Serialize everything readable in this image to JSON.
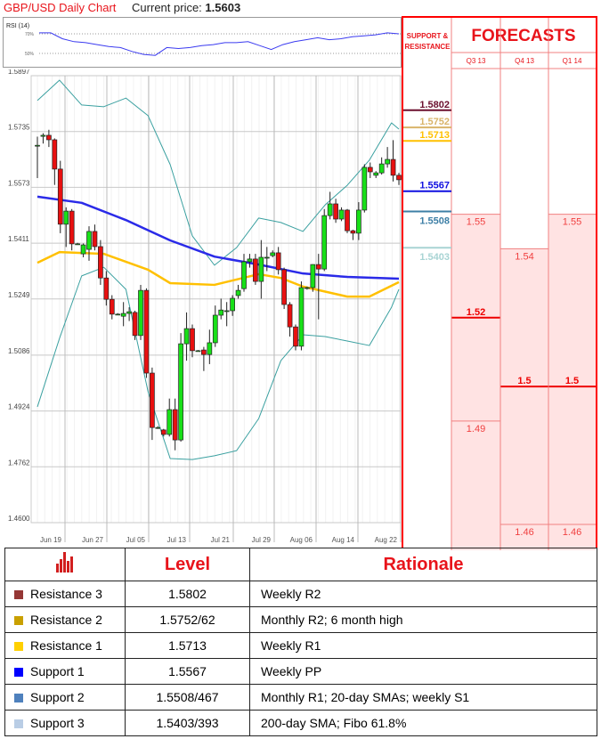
{
  "header": {
    "title": "GBP/USD Daily Chart",
    "current_price_label": "Current price:",
    "current_price": "1.5603"
  },
  "chart_data": [
    {
      "type": "line",
      "title": "RSI (14)",
      "ylim": [
        40,
        80
      ],
      "yticks": [
        "70%",
        "50%"
      ],
      "values": [
        71,
        71,
        65,
        62,
        61,
        59,
        57,
        56,
        52,
        49,
        48,
        56,
        55,
        56,
        58,
        59,
        61,
        61,
        62,
        58,
        54,
        59,
        62,
        64,
        66,
        64,
        65,
        67,
        68,
        69,
        71,
        70
      ],
      "color": "#3b3bf0"
    },
    {
      "type": "candlestick",
      "ylim": [
        1.46,
        1.5897
      ],
      "yticks": [
        "1.5897",
        "1.5735",
        "1.5573",
        "1.5411",
        "1.5249",
        "1.5086",
        "1.4924",
        "1.4762",
        "1.4600"
      ],
      "xticks": [
        "Jun 19",
        "Jun 27",
        "Jul 05",
        "Jul 13",
        "Jul 21",
        "Jul 29",
        "Aug 06",
        "Aug 14",
        "Aug 22"
      ],
      "ohlc": [
        [
          1.5695,
          1.572,
          1.56,
          1.5695
        ],
        [
          1.5721,
          1.573,
          1.57,
          1.5724
        ],
        [
          1.5724,
          1.574,
          1.569,
          1.5711
        ],
        [
          1.5711,
          1.5715,
          1.558,
          1.5626
        ],
        [
          1.5626,
          1.565,
          1.544,
          1.5466
        ],
        [
          1.5466,
          1.5515,
          1.54,
          1.5504
        ],
        [
          1.5504,
          1.551,
          1.539,
          1.5409
        ],
        [
          1.5409,
          1.5412,
          1.5406,
          1.5409
        ],
        [
          1.538,
          1.541,
          1.537,
          1.5406
        ],
        [
          1.5393,
          1.546,
          1.536,
          1.5445
        ],
        [
          1.5445,
          1.5465,
          1.539,
          1.5401
        ],
        [
          1.5401,
          1.542,
          1.529,
          1.531
        ],
        [
          1.531,
          1.533,
          1.523,
          1.5248
        ],
        [
          1.5248,
          1.526,
          1.519,
          1.5205
        ],
        [
          1.5205,
          1.5208,
          1.5202,
          1.5205
        ],
        [
          1.5199,
          1.524,
          1.517,
          1.5207
        ],
        [
          1.5207,
          1.5225,
          1.5185,
          1.5212
        ],
        [
          1.521,
          1.5215,
          1.513,
          1.5143
        ],
        [
          1.5143,
          1.529,
          1.513,
          1.5274
        ],
        [
          1.5274,
          1.528,
          1.502,
          1.5034
        ],
        [
          1.5034,
          1.505,
          1.484,
          1.4876
        ],
        [
          1.4876,
          1.488,
          1.4872,
          1.4876
        ],
        [
          1.4869,
          1.4872,
          1.485,
          1.4856
        ],
        [
          1.4856,
          1.496,
          1.485,
          1.4928
        ],
        [
          1.4928,
          1.496,
          1.481,
          1.484
        ],
        [
          1.484,
          1.515,
          1.4835,
          1.5119
        ],
        [
          1.5119,
          1.521,
          1.507,
          1.5163
        ],
        [
          1.5163,
          1.5175,
          1.508,
          1.5099
        ],
        [
          1.5099,
          1.5101,
          1.5097,
          1.5099
        ],
        [
          1.5101,
          1.511,
          1.504,
          1.5088
        ],
        [
          1.5088,
          1.516,
          1.506,
          1.5122
        ],
        [
          1.5122,
          1.523,
          1.511,
          1.5202
        ],
        [
          1.5202,
          1.525,
          1.519,
          1.5217
        ],
        [
          1.5215,
          1.524,
          1.517,
          1.5215
        ],
        [
          1.5215,
          1.526,
          1.52,
          1.5251
        ],
        [
          1.5259,
          1.529,
          1.525,
          1.5274
        ],
        [
          1.5279,
          1.538,
          1.527,
          1.5357
        ],
        [
          1.5357,
          1.538,
          1.534,
          1.5365
        ],
        [
          1.5365,
          1.538,
          1.529,
          1.53
        ],
        [
          1.53,
          1.542,
          1.525,
          1.537
        ],
        [
          1.537,
          1.54,
          1.533,
          1.537
        ],
        [
          1.5375,
          1.539,
          1.537,
          1.5383
        ],
        [
          1.5383,
          1.54,
          1.532,
          1.5334
        ],
        [
          1.5334,
          1.534,
          1.522,
          1.5233
        ],
        [
          1.5233,
          1.524,
          1.514,
          1.5168
        ],
        [
          1.5168,
          1.5175,
          1.51,
          1.5112
        ],
        [
          1.5112,
          1.53,
          1.51,
          1.5282
        ],
        [
          1.5282,
          1.5285,
          1.5276,
          1.5282
        ],
        [
          1.5282,
          1.535,
          1.527,
          1.5349
        ],
        [
          1.5349,
          1.538,
          1.519,
          1.5336
        ],
        [
          1.5336,
          1.551,
          1.533,
          1.5491
        ],
        [
          1.5491,
          1.556,
          1.548,
          1.5525
        ],
        [
          1.5525,
          1.554,
          1.547,
          1.5481
        ],
        [
          1.5481,
          1.5515,
          1.5475,
          1.5507
        ],
        [
          1.5507,
          1.551,
          1.544,
          1.5447
        ],
        [
          1.5447,
          1.545,
          1.542,
          1.544
        ],
        [
          1.544,
          1.553,
          1.542,
          1.5507
        ],
        [
          1.5507,
          1.564,
          1.55,
          1.5631
        ],
        [
          1.5631,
          1.5645,
          1.56,
          1.5618
        ],
        [
          1.5608,
          1.562,
          1.56,
          1.5615
        ],
        [
          1.5615,
          1.566,
          1.561,
          1.5641
        ],
        [
          1.5641,
          1.569,
          1.563,
          1.5654
        ],
        [
          1.5654,
          1.571,
          1.559,
          1.5608
        ],
        [
          1.5608,
          1.5615,
          1.558,
          1.5595
        ]
      ],
      "overlays": [
        {
          "name": "upper band",
          "color": "#3aa0a0",
          "points": [
            [
              0,
              1.5825
            ],
            [
              3,
              1.5884
            ],
            [
              6,
              1.5812
            ],
            [
              9,
              1.5807
            ],
            [
              12,
              1.5832
            ],
            [
              15,
              1.5781
            ],
            [
              18,
              1.5639
            ],
            [
              21,
              1.5432
            ],
            [
              24,
              1.5347
            ],
            [
              27,
              1.5398
            ],
            [
              30,
              1.5484
            ],
            [
              33,
              1.5471
            ],
            [
              36,
              1.5445
            ],
            [
              39,
              1.5522
            ],
            [
              42,
              1.5579
            ],
            [
              45,
              1.5652
            ],
            [
              48,
              1.576
            ],
            [
              49,
              1.5742
            ]
          ]
        },
        {
          "name": "lower band",
          "color": "#3aa0a0",
          "points": [
            [
              0,
              1.4936
            ],
            [
              3,
              1.5135
            ],
            [
              6,
              1.5316
            ],
            [
              9,
              1.5341
            ],
            [
              12,
              1.5277
            ],
            [
              15,
              1.498
            ],
            [
              18,
              1.4786
            ],
            [
              21,
              1.4783
            ],
            [
              24,
              1.4794
            ],
            [
              27,
              1.4809
            ],
            [
              30,
              1.4902
            ],
            [
              33,
              1.507
            ],
            [
              36,
              1.5145
            ],
            [
              39,
              1.514
            ],
            [
              42,
              1.5127
            ],
            [
              45,
              1.5114
            ],
            [
              48,
              1.5225
            ],
            [
              49,
              1.5277
            ]
          ]
        },
        {
          "name": "blue sma",
          "color": "#2a2ae8",
          "points": [
            [
              0,
              1.5546
            ],
            [
              6,
              1.5528
            ],
            [
              12,
              1.5478
            ],
            [
              18,
              1.5419
            ],
            [
              24,
              1.5372
            ],
            [
              30,
              1.5349
            ],
            [
              36,
              1.5323
            ],
            [
              42,
              1.5313
            ],
            [
              49,
              1.5308
            ]
          ]
        },
        {
          "name": "yellow sma",
          "color": "#ffc000",
          "points": [
            [
              0,
              1.5354
            ],
            [
              3,
              1.5385
            ],
            [
              9,
              1.538
            ],
            [
              15,
              1.5334
            ],
            [
              18,
              1.5295
            ],
            [
              24,
              1.529
            ],
            [
              30,
              1.5321
            ],
            [
              33,
              1.531
            ],
            [
              36,
              1.5285
            ],
            [
              42,
              1.5256
            ],
            [
              45,
              1.5256
            ],
            [
              49,
              1.5298
            ]
          ]
        }
      ]
    }
  ],
  "panel": {
    "sr_header": "SUPPORT & RESISTANCE",
    "forecast_title": "FORECASTS",
    "quarters": [
      "Q3 13",
      "Q4 13",
      "Q1 14"
    ],
    "levels": [
      {
        "label": "1.5802",
        "value": 1.5802,
        "color": "#6b0f2e"
      },
      {
        "label": "1.5752",
        "value": 1.5752,
        "color": "#d9b46a"
      },
      {
        "label": "1.5713",
        "value": 1.5713,
        "color": "#ffc000"
      },
      {
        "label": "1.5567",
        "value": 1.5567,
        "color": "#1010e0"
      },
      {
        "label": "1.5508",
        "value": 1.5508,
        "color": "#3d7fa6"
      },
      {
        "label": "1.5403",
        "value": 1.5403,
        "color": "#a8d4d4"
      }
    ],
    "forecasts": [
      [
        {
          "label": "1.55",
          "value": 1.55
        },
        {
          "label": "1.52",
          "value": 1.52,
          "bold": true
        },
        {
          "label": "1.49",
          "value": 1.49
        }
      ],
      [
        {
          "label": "1.54",
          "value": 1.54
        },
        {
          "label": "1.5",
          "value": 1.5,
          "bold": true
        },
        {
          "label": "1.46",
          "value": 1.46
        }
      ],
      [
        {
          "label": "1.55",
          "value": 1.55
        },
        {
          "label": "1.5",
          "value": 1.5,
          "bold": true
        },
        {
          "label": "1.46",
          "value": 1.46
        }
      ]
    ]
  },
  "table": {
    "headers": [
      "Level",
      "Rationale"
    ],
    "rows": [
      {
        "name": "Resistance 3",
        "level": "1.5802",
        "rationale": "Weekly R2",
        "color": "#953735"
      },
      {
        "name": "Resistance 2",
        "level": "1.5752/62",
        "rationale": "Monthly R2; 6 month high",
        "color": "#c9a000"
      },
      {
        "name": "Resistance 1",
        "level": "1.5713",
        "rationale": "Weekly R1",
        "color": "#ffd000"
      },
      {
        "name": "Support 1",
        "level": "1.5567",
        "rationale": "Weekly PP",
        "color": "#0000ff"
      },
      {
        "name": "Support 2",
        "level": "1.5508/467",
        "rationale": "Monthly R1; 20-day SMAs; weekly S1",
        "color": "#4f81bd"
      },
      {
        "name": "Support 3",
        "level": "1.5403/393",
        "rationale": "200-day SMA; Fibo 61.8%",
        "color": "#b9cde5"
      }
    ]
  }
}
